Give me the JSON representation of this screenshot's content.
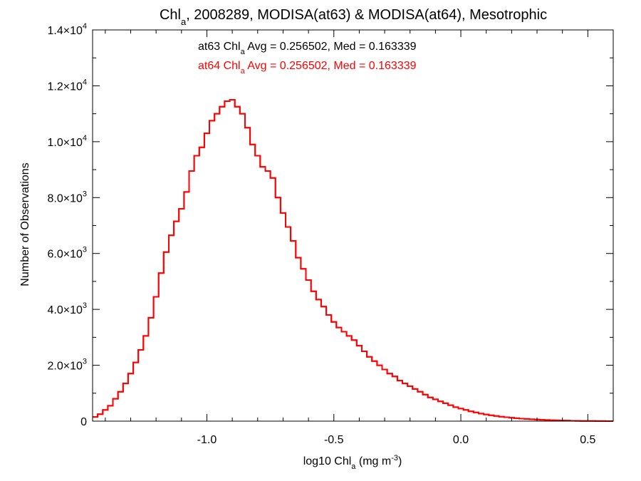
{
  "chart_data": {
    "type": "line",
    "title": {
      "prefix": "Chl",
      "sub": "a",
      "suffix": ", 2008289, MODISA(at63) & MODISA(at64), Mesotrophic"
    },
    "xlabel": {
      "prefix": "log10 Chl",
      "sub": "a",
      "mid": " (mg m",
      "sup": "-3",
      "suffix": ")"
    },
    "ylabel": "Number of Observations",
    "xlim": [
      -1.45,
      0.6
    ],
    "ylim": [
      0,
      14000
    ],
    "xticks": [
      {
        "value": -1.0,
        "label": "-1.0"
      },
      {
        "value": -0.5,
        "label": "-0.5"
      },
      {
        "value": 0.0,
        "label": "0.0"
      },
      {
        "value": 0.5,
        "label": "0.5"
      }
    ],
    "yticks": [
      {
        "value": 0,
        "mant": "0",
        "exp": ""
      },
      {
        "value": 2000,
        "mant": "2.0×10",
        "exp": "3"
      },
      {
        "value": 4000,
        "mant": "4.0×10",
        "exp": "3"
      },
      {
        "value": 6000,
        "mant": "6.0×10",
        "exp": "3"
      },
      {
        "value": 8000,
        "mant": "8.0×10",
        "exp": "3"
      },
      {
        "value": 10000,
        "mant": "1.0×10",
        "exp": "4"
      },
      {
        "value": 12000,
        "mant": "1.2×10",
        "exp": "4"
      },
      {
        "value": 14000,
        "mant": "1.4×10",
        "exp": "4"
      }
    ],
    "annotations": [
      {
        "prefix": "at63 Chl",
        "sub": "a",
        "suffix": " Avg = 0.256502, Med = 0.163339",
        "color": "#000000"
      },
      {
        "prefix": "at64 Chl",
        "sub": "a",
        "suffix": " Avg = 0.256502, Med = 0.163339",
        "color": "#ff0000"
      }
    ],
    "series": [
      {
        "color": "#ff0000",
        "step": true,
        "x": [
          -1.45,
          -1.43,
          -1.41,
          -1.39,
          -1.37,
          -1.35,
          -1.33,
          -1.31,
          -1.29,
          -1.27,
          -1.25,
          -1.23,
          -1.21,
          -1.19,
          -1.17,
          -1.15,
          -1.13,
          -1.11,
          -1.09,
          -1.07,
          -1.05,
          -1.03,
          -1.01,
          -0.99,
          -0.97,
          -0.95,
          -0.93,
          -0.91,
          -0.89,
          -0.87,
          -0.85,
          -0.83,
          -0.81,
          -0.79,
          -0.77,
          -0.75,
          -0.73,
          -0.71,
          -0.69,
          -0.67,
          -0.65,
          -0.63,
          -0.61,
          -0.59,
          -0.57,
          -0.55,
          -0.53,
          -0.51,
          -0.49,
          -0.47,
          -0.45,
          -0.43,
          -0.41,
          -0.39,
          -0.37,
          -0.35,
          -0.33,
          -0.31,
          -0.29,
          -0.27,
          -0.25,
          -0.23,
          -0.21,
          -0.19,
          -0.17,
          -0.15,
          -0.13,
          -0.11,
          -0.09,
          -0.07,
          -0.05,
          -0.03,
          -0.01,
          0.01,
          0.03,
          0.05,
          0.07,
          0.09,
          0.11,
          0.13,
          0.15,
          0.17,
          0.19,
          0.21,
          0.23,
          0.25,
          0.27,
          0.29,
          0.31,
          0.33,
          0.35,
          0.37,
          0.39,
          0.41,
          0.43,
          0.45,
          0.47,
          0.49,
          0.51,
          0.53,
          0.55,
          0.57,
          0.59
        ],
        "y": [
          150,
          250,
          400,
          550,
          800,
          1050,
          1350,
          1700,
          2100,
          2550,
          3050,
          3700,
          4450,
          5300,
          6050,
          6650,
          7150,
          7600,
          8200,
          8950,
          9500,
          9800,
          10300,
          10750,
          11000,
          11250,
          11450,
          11500,
          11250,
          11000,
          10500,
          9900,
          9500,
          9100,
          8950,
          8700,
          8000,
          7450,
          6950,
          6450,
          5850,
          5450,
          5050,
          4650,
          4350,
          4100,
          3800,
          3550,
          3350,
          3200,
          3050,
          2900,
          2700,
          2500,
          2300,
          2150,
          2000,
          1850,
          1700,
          1600,
          1450,
          1350,
          1250,
          1150,
          1050,
          950,
          850,
          780,
          710,
          640,
          570,
          500,
          450,
          400,
          350,
          310,
          270,
          240,
          210,
          185,
          160,
          140,
          120,
          105,
          90,
          78,
          67,
          57,
          48,
          40,
          34,
          28,
          23,
          18,
          14,
          11,
          8,
          6,
          4,
          3,
          2,
          1,
          0
        ]
      },
      {
        "color": "#ff0000",
        "step": true,
        "x": [
          -1.45,
          -1.43,
          -1.41,
          -1.39,
          -1.37,
          -1.35,
          -1.33,
          -1.31,
          -1.29,
          -1.27,
          -1.25,
          -1.23,
          -1.21,
          -1.19,
          -1.17,
          -1.15,
          -1.13,
          -1.11,
          -1.09,
          -1.07,
          -1.05,
          -1.03,
          -1.01,
          -0.99,
          -0.97,
          -0.95,
          -0.93,
          -0.91,
          -0.89,
          -0.87,
          -0.85,
          -0.83,
          -0.81,
          -0.79,
          -0.77,
          -0.75,
          -0.73,
          -0.71,
          -0.69,
          -0.67,
          -0.65,
          -0.63,
          -0.61,
          -0.59,
          -0.57,
          -0.55,
          -0.53,
          -0.51,
          -0.49,
          -0.47,
          -0.45,
          -0.43,
          -0.41,
          -0.39,
          -0.37,
          -0.35,
          -0.33,
          -0.31,
          -0.29,
          -0.27,
          -0.25,
          -0.23,
          -0.21,
          -0.19,
          -0.17,
          -0.15,
          -0.13,
          -0.11,
          -0.09,
          -0.07,
          -0.05,
          -0.03,
          -0.01,
          0.01,
          0.03,
          0.05,
          0.07,
          0.09,
          0.11,
          0.13,
          0.15,
          0.17,
          0.19,
          0.21,
          0.23,
          0.25,
          0.27,
          0.29,
          0.31,
          0.33,
          0.35,
          0.37,
          0.39,
          0.41,
          0.43,
          0.45,
          0.47,
          0.49,
          0.51,
          0.53,
          0.55,
          0.57,
          0.59
        ],
        "y": [
          150,
          250,
          400,
          550,
          800,
          1050,
          1350,
          1700,
          2100,
          2550,
          3050,
          3700,
          4450,
          5300,
          6050,
          6650,
          7150,
          7600,
          8200,
          8950,
          9500,
          9800,
          10300,
          10750,
          11000,
          11250,
          11450,
          11500,
          11250,
          11000,
          10500,
          9900,
          9500,
          9100,
          8950,
          8700,
          8000,
          7450,
          6950,
          6450,
          5850,
          5450,
          5050,
          4650,
          4350,
          4100,
          3800,
          3550,
          3350,
          3200,
          3050,
          2900,
          2700,
          2500,
          2300,
          2150,
          2000,
          1850,
          1700,
          1600,
          1450,
          1350,
          1250,
          1150,
          1050,
          950,
          850,
          780,
          710,
          640,
          570,
          500,
          450,
          400,
          350,
          310,
          270,
          240,
          210,
          185,
          160,
          140,
          120,
          105,
          90,
          78,
          67,
          57,
          48,
          40,
          34,
          28,
          23,
          18,
          14,
          11,
          8,
          6,
          4,
          3,
          2,
          1,
          0
        ]
      }
    ]
  }
}
